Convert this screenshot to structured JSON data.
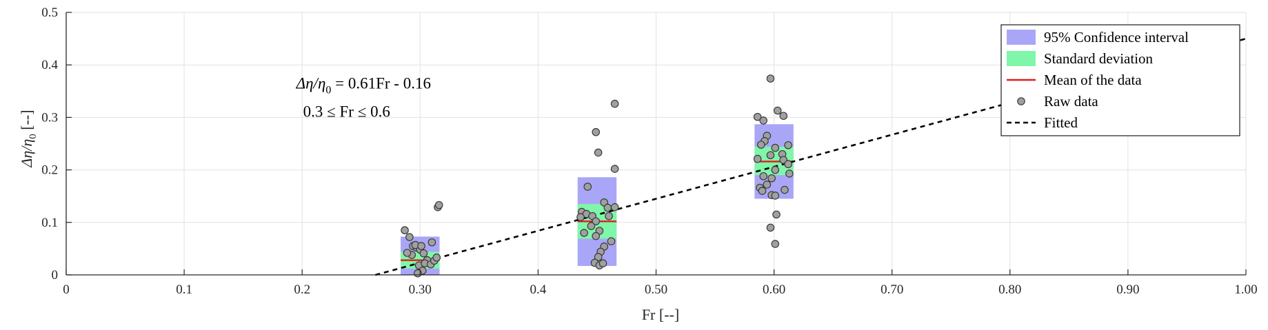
{
  "chart_data": {
    "type": "scatter",
    "xlabel": "Fr [--]",
    "ylabel_main": "Δη/η",
    "ylabel_sub": "0",
    "ylabel_tail": " [--]",
    "xlim": [
      0,
      1.0
    ],
    "ylim": [
      0,
      0.5
    ],
    "grid": true,
    "x_ticks": [
      0,
      0.1,
      0.2,
      0.3,
      0.4,
      0.5,
      0.6,
      0.7,
      0.8,
      0.9,
      1.0
    ],
    "x_tick_labels": [
      "0",
      "0.1",
      "0.2",
      "0.30",
      "0.4",
      "0.50",
      "0.60",
      "0.70",
      "0.80",
      "0.90",
      "1.00"
    ],
    "y_ticks": [
      0,
      0.1,
      0.2,
      0.3,
      0.4,
      0.5
    ],
    "y_tick_labels": [
      "0",
      "0.1",
      "0.2",
      "0.3",
      "0.4",
      "0.5"
    ],
    "annotation": {
      "line1_a": "Δη/η",
      "line1_sub": "0",
      "line1_b": " = 0.61Fr - 0.16",
      "line2": "0.3 ≤ Fr ≤ 0.6",
      "pos": [
        0.195,
        0.355
      ]
    },
    "fit": {
      "slope": 0.61,
      "intercept": -0.16,
      "x_range": [
        0.262,
        1.0
      ],
      "label": "Fitted"
    },
    "groups": [
      {
        "fr": 0.3,
        "mean": 0.028,
        "ci": [
          0.0,
          0.073
        ],
        "sd": [
          0.012,
          0.044
        ],
        "box_halfwidth": 0.0165,
        "raw": [
          [
            0.287,
            0.085
          ],
          [
            0.291,
            0.072
          ],
          [
            0.294,
            0.055
          ],
          [
            0.297,
            0.052
          ],
          [
            0.3,
            0.048
          ],
          [
            0.303,
            0.041
          ],
          [
            0.306,
            0.028
          ],
          [
            0.31,
            0.062
          ],
          [
            0.293,
            0.038
          ],
          [
            0.299,
            0.018
          ],
          [
            0.302,
            0.008
          ],
          [
            0.298,
            0.003
          ],
          [
            0.304,
            0.022
          ],
          [
            0.309,
            0.02
          ],
          [
            0.312,
            0.027
          ],
          [
            0.314,
            0.033
          ],
          [
            0.289,
            0.042
          ],
          [
            0.296,
            0.057
          ],
          [
            0.315,
            0.129
          ],
          [
            0.316,
            0.133
          ],
          [
            0.301,
            0.055
          ]
        ]
      },
      {
        "fr": 0.45,
        "mean": 0.102,
        "ci": [
          0.017,
          0.186
        ],
        "sd": [
          0.069,
          0.135
        ],
        "box_halfwidth": 0.0165,
        "raw": [
          [
            0.449,
            0.272
          ],
          [
            0.465,
            0.326
          ],
          [
            0.451,
            0.233
          ],
          [
            0.465,
            0.202
          ],
          [
            0.442,
            0.168
          ],
          [
            0.456,
            0.138
          ],
          [
            0.459,
            0.128
          ],
          [
            0.465,
            0.129
          ],
          [
            0.437,
            0.12
          ],
          [
            0.441,
            0.116
          ],
          [
            0.446,
            0.112
          ],
          [
            0.46,
            0.112
          ],
          [
            0.436,
            0.11
          ],
          [
            0.449,
            0.102
          ],
          [
            0.445,
            0.093
          ],
          [
            0.452,
            0.084
          ],
          [
            0.439,
            0.08
          ],
          [
            0.449,
            0.074
          ],
          [
            0.462,
            0.064
          ],
          [
            0.456,
            0.054
          ],
          [
            0.453,
            0.044
          ],
          [
            0.451,
            0.034
          ],
          [
            0.448,
            0.023
          ],
          [
            0.452,
            0.018
          ],
          [
            0.455,
            0.022
          ]
        ]
      },
      {
        "fr": 0.6,
        "mean": 0.216,
        "ci": [
          0.145,
          0.287
        ],
        "sd": [
          0.19,
          0.244
        ],
        "box_halfwidth": 0.0165,
        "raw": [
          [
            0.597,
            0.374
          ],
          [
            0.603,
            0.313
          ],
          [
            0.608,
            0.303
          ],
          [
            0.586,
            0.301
          ],
          [
            0.591,
            0.294
          ],
          [
            0.594,
            0.265
          ],
          [
            0.592,
            0.255
          ],
          [
            0.589,
            0.248
          ],
          [
            0.601,
            0.242
          ],
          [
            0.612,
            0.247
          ],
          [
            0.607,
            0.23
          ],
          [
            0.597,
            0.228
          ],
          [
            0.586,
            0.221
          ],
          [
            0.608,
            0.219
          ],
          [
            0.612,
            0.211
          ],
          [
            0.613,
            0.193
          ],
          [
            0.601,
            0.2
          ],
          [
            0.591,
            0.188
          ],
          [
            0.598,
            0.184
          ],
          [
            0.594,
            0.172
          ],
          [
            0.588,
            0.166
          ],
          [
            0.59,
            0.16
          ],
          [
            0.598,
            0.152
          ],
          [
            0.601,
            0.151
          ],
          [
            0.609,
            0.162
          ],
          [
            0.602,
            0.115
          ],
          [
            0.597,
            0.09
          ],
          [
            0.601,
            0.059
          ]
        ]
      }
    ],
    "legend": {
      "position": "top-right",
      "entries": [
        {
          "label": "95% Confidence interval",
          "type": "patch",
          "color": "#a9a6f8"
        },
        {
          "label": "Standard deviation",
          "type": "patch",
          "color": "#7ff6a9"
        },
        {
          "label": "Mean of the data",
          "type": "line",
          "color": "#e41a1a"
        },
        {
          "label": "Raw data",
          "type": "marker",
          "color": "#a0a0a0"
        },
        {
          "label": "Fitted",
          "type": "dashed",
          "color": "#000000"
        }
      ]
    },
    "colors": {
      "ci": "#a9a6f8",
      "sd": "#7ff6a9",
      "mean": "#e41a1a",
      "raw_fill": "#a0a0a0",
      "raw_edge": "#3a3a3a",
      "fit": "#000000",
      "grid": "#e2e2e2",
      "axis": "#262626"
    }
  }
}
